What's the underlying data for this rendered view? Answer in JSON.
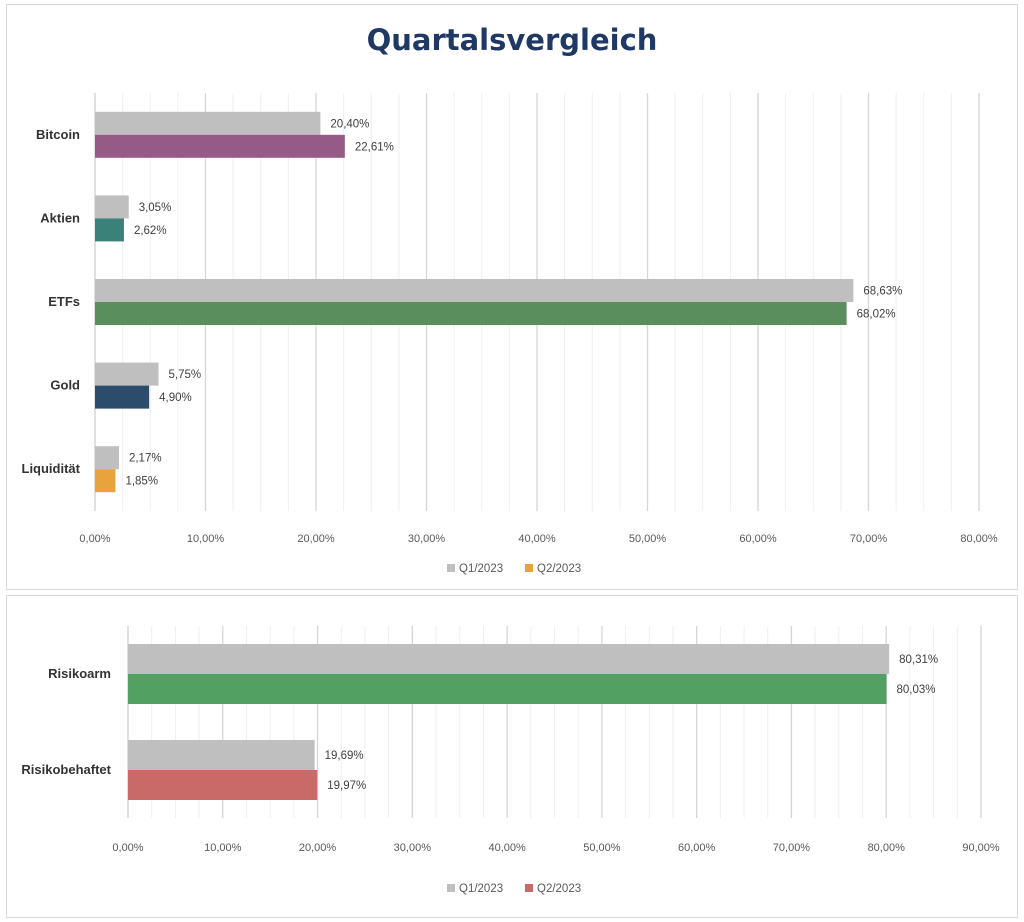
{
  "chart_data": [
    {
      "type": "bar",
      "orientation": "horizontal",
      "title": "Quartalsvergleich",
      "categories": [
        "Bitcoin",
        "Aktien",
        "ETFs",
        "Gold",
        "Liquidität"
      ],
      "series": [
        {
          "name": "Q1/2023",
          "values": [
            20.4,
            3.05,
            68.63,
            5.75,
            2.17
          ],
          "labels": [
            "20,40%",
            "3,05%",
            "68,63%",
            "5,75%",
            "2,17%"
          ],
          "color": "#bfbfbf"
        },
        {
          "name": "Q2/2023",
          "values": [
            22.61,
            2.62,
            68.02,
            4.9,
            1.85
          ],
          "labels": [
            "22,61%",
            "2,62%",
            "68,02%",
            "4,90%",
            "1,85%"
          ],
          "colors": [
            "#955a86",
            "#3a8279",
            "#5a8f5d",
            "#2b4d6b",
            "#e8a33c"
          ]
        }
      ],
      "xlim": [
        0,
        80
      ],
      "xticks": [
        "0,00%",
        "10,00%",
        "20,00%",
        "30,00%",
        "40,00%",
        "50,00%",
        "60,00%",
        "70,00%",
        "80,00%"
      ],
      "legend": {
        "position": "bottom",
        "entries": [
          {
            "label": "Q1/2023",
            "color": "#bfbfbf"
          },
          {
            "label": "Q2/2023",
            "color": "#e8a33c"
          }
        ]
      },
      "grid": true
    },
    {
      "type": "bar",
      "orientation": "horizontal",
      "title": "",
      "categories": [
        "Risikoarm",
        "Risikobehaftet"
      ],
      "series": [
        {
          "name": "Q1/2023",
          "values": [
            80.31,
            19.69
          ],
          "labels": [
            "80,31%",
            "19,69%"
          ],
          "color": "#bfbfbf"
        },
        {
          "name": "Q2/2023",
          "values": [
            80.03,
            19.97
          ],
          "labels": [
            "80,03%",
            "19,97%"
          ],
          "colors": [
            "#53a063",
            "#c96a68"
          ]
        }
      ],
      "xlim": [
        0,
        90
      ],
      "xticks": [
        "0,00%",
        "10,00%",
        "20,00%",
        "30,00%",
        "40,00%",
        "50,00%",
        "60,00%",
        "70,00%",
        "80,00%",
        "90,00%"
      ],
      "legend": {
        "position": "bottom",
        "entries": [
          {
            "label": "Q1/2023",
            "color": "#bfbfbf"
          },
          {
            "label": "Q2/2023",
            "color": "#c96a68"
          }
        ]
      },
      "grid": true
    }
  ]
}
